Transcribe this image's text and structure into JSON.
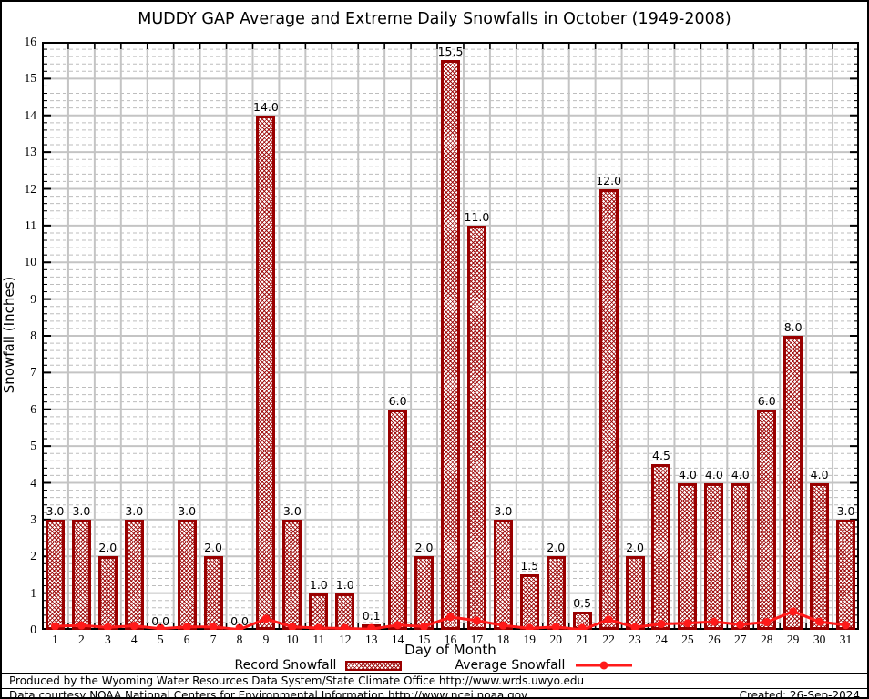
{
  "chart_data": {
    "type": "bar",
    "title": "MUDDY GAP Average and Extreme Daily Snowfalls in October (1949-2008)",
    "xlabel": "Day of Month",
    "ylabel": "Snowfall (Inches)",
    "ylim": [
      0,
      16
    ],
    "y_major_step": 1,
    "y_minor_step": 0.2,
    "grid": true,
    "legend_position": "bottom",
    "categories": [
      "1",
      "2",
      "3",
      "4",
      "5",
      "6",
      "7",
      "8",
      "9",
      "10",
      "11",
      "12",
      "13",
      "14",
      "15",
      "16",
      "17",
      "18",
      "19",
      "20",
      "21",
      "22",
      "23",
      "24",
      "25",
      "26",
      "27",
      "28",
      "29",
      "30",
      "31"
    ],
    "series": [
      {
        "name": "Record Snowfall",
        "type": "bar",
        "values": [
          3.0,
          3.0,
          2.0,
          3.0,
          0.0,
          3.0,
          2.0,
          0.0,
          14.0,
          3.0,
          1.0,
          1.0,
          0.1,
          6.0,
          2.0,
          15.5,
          11.0,
          3.0,
          1.5,
          2.0,
          0.5,
          12.0,
          2.0,
          4.5,
          4.0,
          4.0,
          4.0,
          6.0,
          8.0,
          4.0,
          3.0
        ],
        "labels": [
          "3.0",
          "3.0",
          "2.0",
          "3.0",
          "0.0",
          "3.0",
          "2.0",
          "0.0",
          "14.0",
          "3.0",
          "1.0",
          "1.0",
          "0.1",
          "6.0",
          "2.0",
          "15.5",
          "11.0",
          "3.0",
          "1.5",
          "2.0",
          "0.5",
          "12.0",
          "2.0",
          "4.5",
          "4.0",
          "4.0",
          "4.0",
          "6.0",
          "8.0",
          "4.0",
          "3.0"
        ]
      },
      {
        "name": "Average Snowfall",
        "type": "line",
        "values": [
          0.1,
          0.12,
          0.07,
          0.11,
          0.03,
          0.08,
          0.08,
          0.01,
          0.3,
          0.08,
          0.05,
          0.04,
          0.02,
          0.13,
          0.09,
          0.35,
          0.25,
          0.12,
          0.04,
          0.08,
          0.0,
          0.28,
          0.07,
          0.16,
          0.18,
          0.22,
          0.14,
          0.21,
          0.5,
          0.22,
          0.13
        ]
      }
    ],
    "colors": {
      "bar_border": "#990000",
      "bar_hatch": "#990000",
      "line": "#ff1a1a",
      "grid_major": "#c4c4c4",
      "grid_minor": "#bdbdbd",
      "axis_border": "#000000"
    }
  },
  "footer": {
    "line1": "Produced by the Wyoming Water Resources Data System/State Climate Office http://www.wrds.uwyo.edu",
    "line2": "Data courtesy NOAA National Centers for Environmental Information http://www.ncei.noaa.gov",
    "created": "Created: 26-Sep-2024"
  }
}
